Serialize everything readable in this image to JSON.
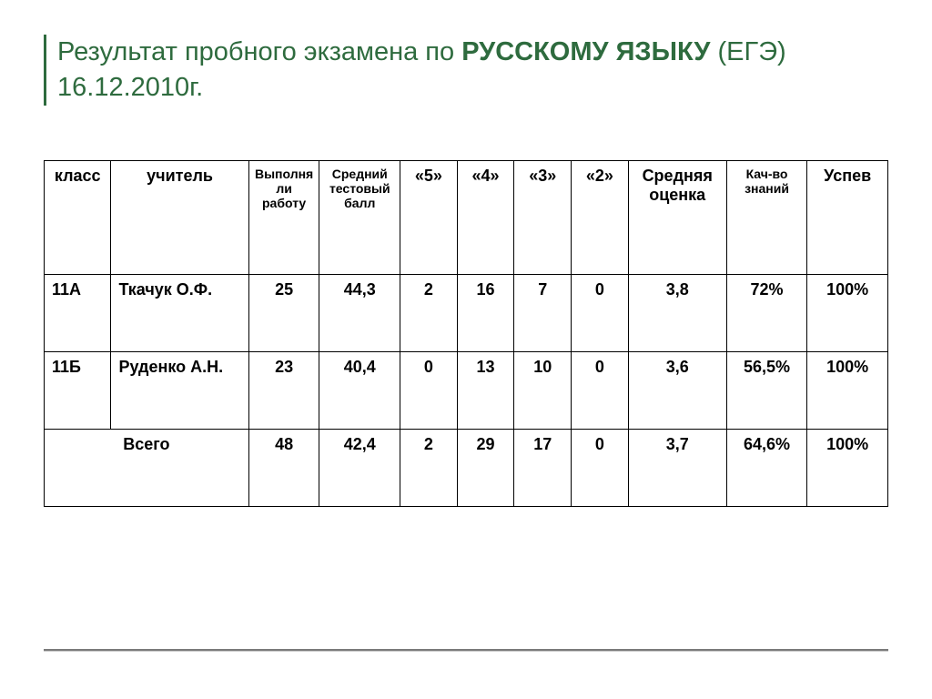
{
  "title": {
    "prefix": "Результат  пробного  экзамена по ",
    "subject": "РУССКОМУ ЯЗЫКУ",
    "suffix": " (ЕГЭ)",
    "date_line": "16.12.2010г."
  },
  "table": {
    "headers": {
      "class": "класс",
      "teacher": "учитель",
      "completed": "Выполняли работу",
      "avg_test": "Средний тестовый балл",
      "g5": "«5»",
      "g4": "«4»",
      "g3": "«3»",
      "g2": "«2»",
      "avg_grade": "Средняя оценка",
      "quality": "Кач-во знаний",
      "uspev": "Успев"
    },
    "rows": [
      {
        "class": "11А",
        "teacher": "Ткачук  О.Ф.",
        "completed": "25",
        "avg_test": "44,3",
        "g5": "2",
        "g4": "16",
        "g3": "7",
        "g2": "0",
        "avg_grade": "3,8",
        "quality": "72%",
        "uspev": "100%"
      },
      {
        "class": "11Б",
        "teacher": "Руденко А.Н.",
        "completed": "23",
        "avg_test": "40,4",
        "g5": "0",
        "g4": "13",
        "g3": "10",
        "g2": "0",
        "avg_grade": "3,6",
        "quality": "56,5%",
        "uspev": "100%"
      }
    ],
    "total": {
      "label": "Всего",
      "completed": "48",
      "avg_test": "42,4",
      "g5": "2",
      "g4": "29",
      "g3": "17",
      "g2": "0",
      "avg_grade": "3,7",
      "quality": "64,6%",
      "uspev": "100%"
    }
  },
  "colors": {
    "title_color": "#2e6b3e",
    "border_color": "#000000",
    "rule_top": "#7a7a7a",
    "rule_bottom": "#c8c8c8",
    "background": "#ffffff"
  }
}
